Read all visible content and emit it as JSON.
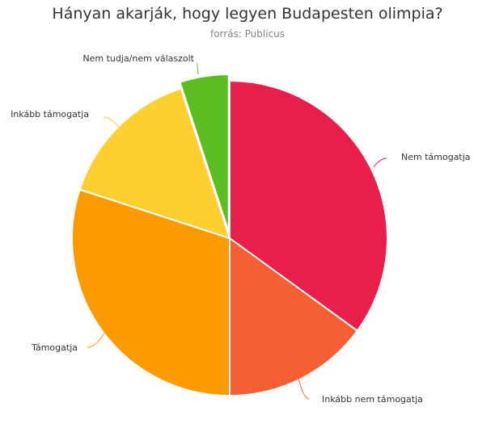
{
  "chart_data": {
    "type": "pie",
    "title": "Hányan akarják, hogy legyen Budapesten olimpia?",
    "subtitle": "forrás: Publicus",
    "start_angle_deg": 0,
    "direction": "clockwise",
    "slices": [
      {
        "label": "Nem támogatja",
        "value": 35,
        "color": "#e91e4a"
      },
      {
        "label": "Inkább nem támogatja",
        "value": 15,
        "color": "#f55f33"
      },
      {
        "label": "Támogatja",
        "value": 30,
        "color": "#fb9b00"
      },
      {
        "label": "Inkább támogatja",
        "value": 15,
        "color": "#fdd02f"
      },
      {
        "label": "Nem tudja/nem válaszolt",
        "value": 5,
        "color": "#5bbd1f"
      }
    ]
  }
}
